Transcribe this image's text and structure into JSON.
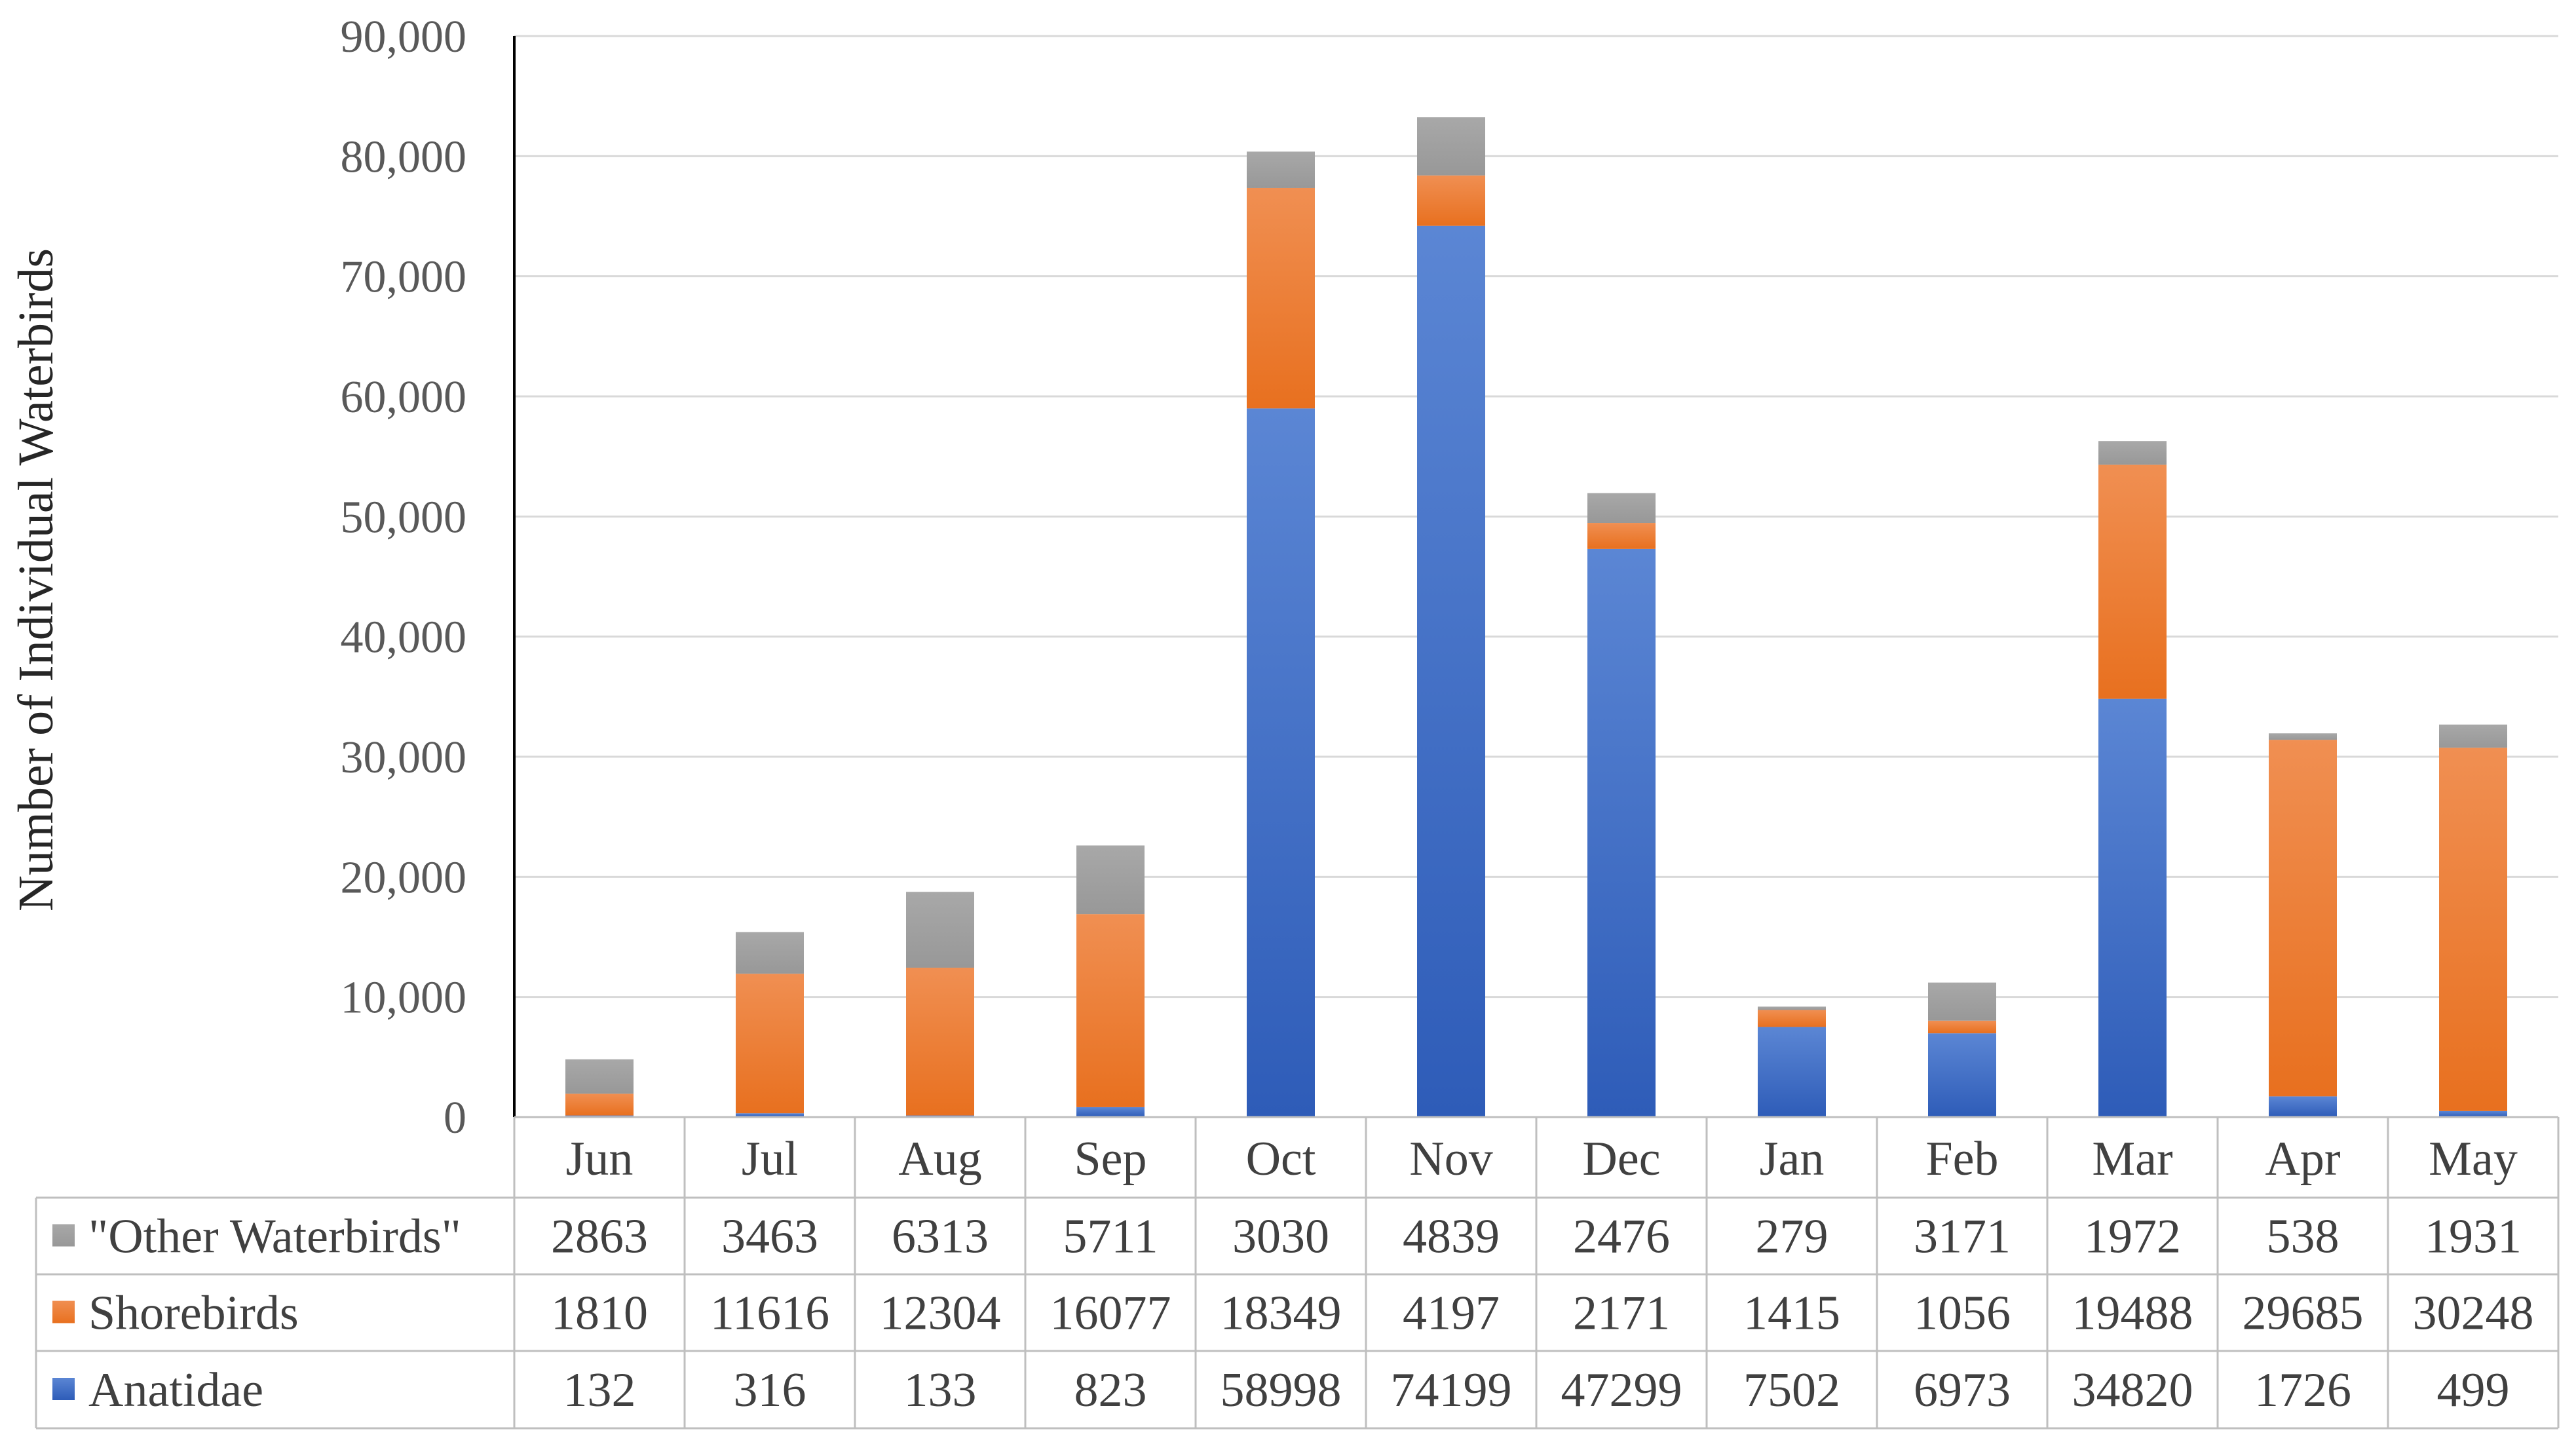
{
  "chart_data": {
    "type": "bar",
    "stacked": true,
    "title": "",
    "xlabel": "",
    "ylabel": "Number of Individual Waterbirds",
    "ylim": [
      0,
      90000
    ],
    "yticks": [
      "0",
      "10,000",
      "20,000",
      "30,000",
      "40,000",
      "50,000",
      "60,000",
      "70,000",
      "80,000",
      "90,000"
    ],
    "grid": true,
    "legend_position": "data table rows (left)",
    "categories": [
      "Jun",
      "Jul",
      "Aug",
      "Sep",
      "Oct",
      "Nov",
      "Dec",
      "Jan",
      "Feb",
      "Mar",
      "Apr",
      "May"
    ],
    "series": [
      {
        "name": "Anatidae",
        "color": "#4472C4",
        "values": [
          132,
          316,
          133,
          823,
          58998,
          74199,
          47299,
          7502,
          6973,
          34820,
          1726,
          499
        ]
      },
      {
        "name": "Shorebirds",
        "color": "#ED7D31",
        "values": [
          1810,
          11616,
          12304,
          16077,
          18349,
          4197,
          2171,
          1415,
          1056,
          19488,
          29685,
          30248
        ]
      },
      {
        "name": "\"Other Waterbirds\"",
        "color": "#A5A5A5",
        "values": [
          2863,
          3463,
          6313,
          5711,
          3030,
          4839,
          2476,
          279,
          3171,
          1972,
          538,
          1931
        ]
      }
    ],
    "table_row_order": [
      "\"Other Waterbirds\"",
      "Shorebirds",
      "Anatidae"
    ]
  }
}
